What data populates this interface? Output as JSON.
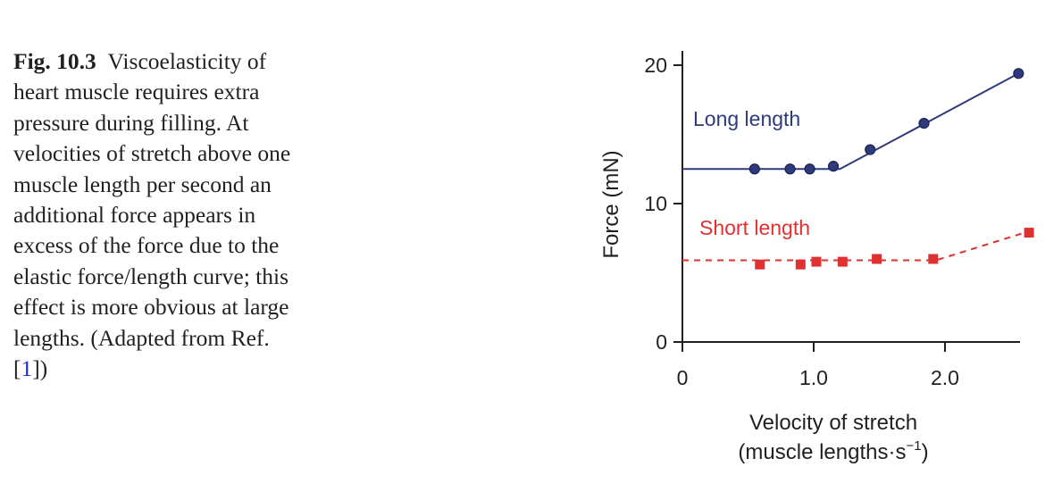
{
  "caption": {
    "label": "Fig. 10.3",
    "text_before_ref": "Viscoelasticity of heart muscle requires extra pressure during filling. At velocities of stretch above one muscle length per second an additional force appears in excess of the force due to the elastic force/length curve; this effect is more obvious at large lengths. (Adapted from Ref. [",
    "ref": "1",
    "text_after_ref": "])"
  },
  "chart_data": {
    "type": "scatter",
    "xlabel_line1": "Velocity of stretch",
    "xlabel_line2": "(muscle lengths·s",
    "xlabel_sup": "−1",
    "xlabel_line2_end": ")",
    "ylabel": "Force (mN)",
    "xlim": [
      0,
      2.6
    ],
    "ylim": [
      0,
      20.5
    ],
    "x_ticks": [
      {
        "value": 0,
        "label": "0"
      },
      {
        "value": 1.0,
        "label": "1.0"
      },
      {
        "value": 2.0,
        "label": "2.0"
      }
    ],
    "y_ticks": [
      {
        "value": 0,
        "label": "0"
      },
      {
        "value": 10,
        "label": "10"
      },
      {
        "value": 20,
        "label": "20"
      }
    ],
    "grid": false,
    "series": [
      {
        "name": "Long length",
        "color": "#2e3a7c",
        "marker": "circle",
        "line_style": "solid",
        "points": [
          {
            "x": 0.55,
            "y": 12.5
          },
          {
            "x": 0.82,
            "y": 12.5
          },
          {
            "x": 0.97,
            "y": 12.5
          },
          {
            "x": 1.15,
            "y": 12.7
          },
          {
            "x": 1.43,
            "y": 13.9
          },
          {
            "x": 1.84,
            "y": 15.8
          },
          {
            "x": 2.56,
            "y": 19.4
          }
        ],
        "fit_line": [
          {
            "x": 0.0,
            "y": 12.5
          },
          {
            "x": 1.2,
            "y": 12.5
          },
          {
            "x": 2.56,
            "y": 19.4
          }
        ]
      },
      {
        "name": "Short length",
        "color": "#e03131",
        "marker": "square",
        "line_style": "dashed",
        "points": [
          {
            "x": 0.59,
            "y": 5.6
          },
          {
            "x": 0.9,
            "y": 5.6
          },
          {
            "x": 1.02,
            "y": 5.8
          },
          {
            "x": 1.22,
            "y": 5.8
          },
          {
            "x": 1.48,
            "y": 6.0
          },
          {
            "x": 1.91,
            "y": 6.0
          },
          {
            "x": 2.64,
            "y": 7.9
          }
        ],
        "fit_line": [
          {
            "x": 0.0,
            "y": 5.9
          },
          {
            "x": 1.93,
            "y": 5.9
          },
          {
            "x": 2.64,
            "y": 8.0
          }
        ]
      }
    ]
  }
}
